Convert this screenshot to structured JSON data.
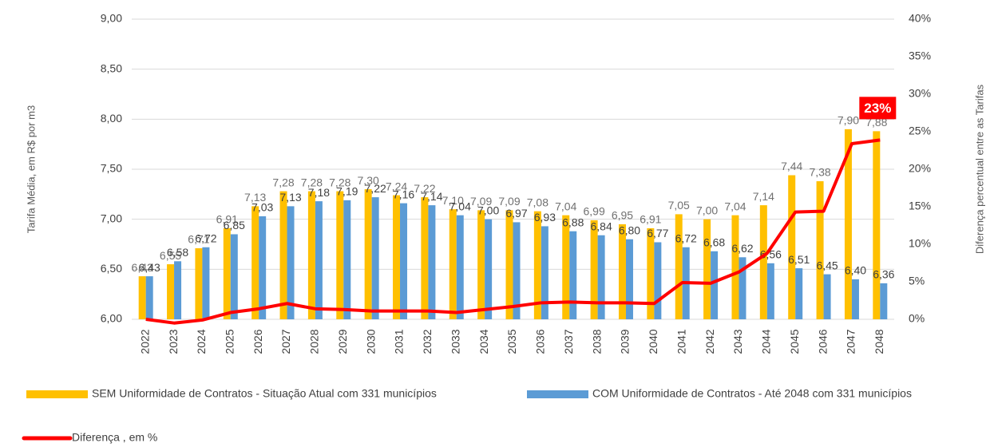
{
  "chart_data": {
    "type": "bar",
    "y_label": "Tarifa Média, em R$ por m3",
    "y2_label": "Diferença percentual  entre as Tarifas",
    "categories": [
      "2022",
      "2023",
      "2024",
      "2025",
      "2026",
      "2027",
      "2028",
      "2029",
      "2030",
      "2031",
      "2032",
      "2033",
      "2034",
      "2035",
      "2036",
      "2037",
      "2038",
      "2039",
      "2040",
      "2041",
      "2042",
      "2043",
      "2044",
      "2045",
      "2046",
      "2047",
      "2048"
    ],
    "series": [
      {
        "name": "SEM Uniformidade de Contratos - Situação Atual com 331 municípios",
        "color": "#ffc000",
        "type": "bar",
        "values": [
          6.43,
          6.55,
          6.71,
          6.91,
          7.13,
          7.28,
          7.28,
          7.28,
          7.3,
          7.24,
          7.22,
          7.1,
          7.09,
          7.09,
          7.08,
          7.04,
          6.99,
          6.95,
          6.91,
          7.05,
          7.0,
          7.04,
          7.14,
          7.44,
          7.38,
          7.9,
          7.88
        ],
        "value_labels": [
          "6,43",
          "6,55",
          "6,71",
          "6,91",
          "7,13",
          "7,28",
          "7,28",
          "7,28",
          "7,30",
          "7,24",
          "7,22",
          "7,10",
          "7,09",
          "7,09",
          "7,08",
          "7,04",
          "6,99",
          "6,95",
          "6,91",
          "7,05",
          "7,00",
          "7,04",
          "7,14",
          "7,44",
          "7,38",
          "7,90",
          "7,88"
        ]
      },
      {
        "name": "COM Uniformidade de Contratos - Até 2048 com 331 municípios",
        "color": "#5b9bd5",
        "type": "bar",
        "values": [
          6.43,
          6.58,
          6.72,
          6.85,
          7.03,
          7.13,
          7.18,
          7.19,
          7.22,
          7.16,
          7.14,
          7.04,
          7.0,
          6.97,
          6.93,
          6.88,
          6.84,
          6.8,
          6.77,
          6.72,
          6.68,
          6.62,
          6.56,
          6.51,
          6.45,
          6.4,
          6.36
        ],
        "value_labels": [
          "6,43",
          "6,58",
          "6,72",
          "6,85",
          "7,03",
          "7,13",
          "7,18",
          "7,19",
          "7,22",
          "7,16",
          "7,14",
          "7,04",
          "7,00",
          "6,97",
          "6,93",
          "6,88",
          "6,84",
          "6,80",
          "6,77",
          "6,72",
          "6,68",
          "6,62",
          "6,56",
          "6,51",
          "6,45",
          "6,40",
          "6,36"
        ]
      },
      {
        "name": "Diferença , em %",
        "color": "#ff0000",
        "type": "line",
        "axis": "y2",
        "values": [
          0,
          -0.5,
          -0.1,
          0.9,
          1.4,
          2.1,
          1.4,
          1.3,
          1.1,
          1.1,
          1.1,
          0.9,
          1.3,
          1.7,
          2.2,
          2.3,
          2.2,
          2.2,
          2.1,
          4.9,
          4.8,
          6.3,
          8.8,
          14.3,
          14.4,
          23.4,
          23.9
        ]
      }
    ],
    "annotations": [
      {
        "text": "23%"
      }
    ],
    "ylim": [
      6,
      9
    ],
    "yticks": [
      {
        "value": 6,
        "label": "6,00"
      },
      {
        "value": 6.5,
        "label": "6,50"
      },
      {
        "value": 7,
        "label": "7,00"
      },
      {
        "value": 7.5,
        "label": "7,50"
      },
      {
        "value": 8,
        "label": "8,00"
      },
      {
        "value": 8.5,
        "label": "8,50"
      },
      {
        "value": 9,
        "label": "9,00"
      }
    ],
    "y2lim": [
      0,
      40
    ],
    "y2ticks": [
      {
        "value": 0,
        "label": "0%"
      },
      {
        "value": 5,
        "label": "5%"
      },
      {
        "value": 10,
        "label": "10%"
      },
      {
        "value": 15,
        "label": "15%"
      },
      {
        "value": 20,
        "label": "20%"
      },
      {
        "value": 25,
        "label": "25%"
      },
      {
        "value": 30,
        "label": "30%"
      },
      {
        "value": 35,
        "label": "35%"
      },
      {
        "value": 40,
        "label": "40%"
      }
    ],
    "grid": true
  }
}
